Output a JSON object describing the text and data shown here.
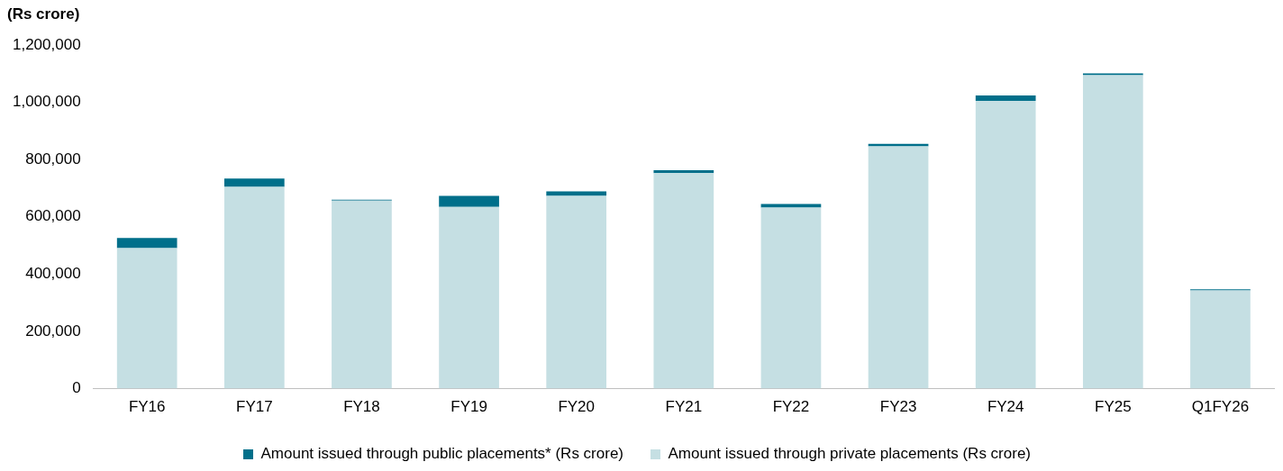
{
  "chart_data": {
    "type": "bar",
    "stacked": true,
    "ylabel": "(Rs crore)",
    "categories": [
      "FY16",
      "FY17",
      "FY18",
      "FY19",
      "FY20",
      "FY21",
      "FY22",
      "FY23",
      "FY24",
      "FY25",
      "Q1FY26"
    ],
    "series": [
      {
        "name": "Amount issued through private placements (Rs crore)",
        "color": "#c5dfe3",
        "values": [
          491000,
          705000,
          657000,
          635000,
          673000,
          753000,
          632000,
          846000,
          1005000,
          1095000,
          343000
        ]
      },
      {
        "name": "Amount issued through public placements* (Rs crore)",
        "color": "#006f8a",
        "values": [
          35000,
          29000,
          3000,
          38000,
          16000,
          10000,
          13000,
          9000,
          19000,
          6000,
          4000
        ]
      }
    ],
    "ylim": [
      0,
      1200000
    ],
    "yticks": [
      {
        "value": 0,
        "label": "0"
      },
      {
        "value": 200000,
        "label": "200,000"
      },
      {
        "value": 400000,
        "label": "400,000"
      },
      {
        "value": 600000,
        "label": "600,000"
      },
      {
        "value": 800000,
        "label": "800,000"
      },
      {
        "value": 1000000,
        "label": "1,000,000"
      },
      {
        "value": 1200000,
        "label": "1,200,000"
      }
    ],
    "grid": false,
    "legend": "bottom"
  }
}
